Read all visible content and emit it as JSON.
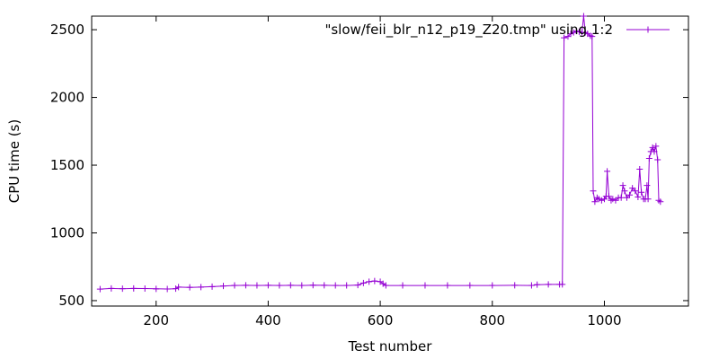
{
  "chart_data": {
    "type": "line",
    "title": "",
    "xlabel": "Test number",
    "ylabel": "CPU time (s)",
    "xlim": [
      85,
      1150
    ],
    "ylim": [
      460,
      2600
    ],
    "x_ticks": [
      200,
      400,
      600,
      800,
      1000
    ],
    "y_ticks": [
      500,
      1000,
      1500,
      2000,
      2500
    ],
    "grid": false,
    "legend_position": "top-right",
    "series": [
      {
        "name": "\"slow/feii_blr_n12_p19_Z20.tmp\" using 1:2",
        "color": "#9400d3",
        "marker": "plus",
        "points": [
          [
            100,
            585
          ],
          [
            120,
            590
          ],
          [
            140,
            588
          ],
          [
            160,
            590
          ],
          [
            180,
            589
          ],
          [
            200,
            587
          ],
          [
            220,
            586
          ],
          [
            235,
            588
          ],
          [
            240,
            600
          ],
          [
            260,
            598
          ],
          [
            280,
            600
          ],
          [
            300,
            603
          ],
          [
            320,
            608
          ],
          [
            340,
            612
          ],
          [
            360,
            613
          ],
          [
            380,
            612
          ],
          [
            400,
            613
          ],
          [
            420,
            612
          ],
          [
            440,
            613
          ],
          [
            460,
            612
          ],
          [
            480,
            614
          ],
          [
            500,
            613
          ],
          [
            520,
            612
          ],
          [
            540,
            612
          ],
          [
            560,
            615
          ],
          [
            570,
            630
          ],
          [
            580,
            640
          ],
          [
            590,
            645
          ],
          [
            600,
            640
          ],
          [
            605,
            625
          ],
          [
            610,
            612
          ],
          [
            640,
            612
          ],
          [
            680,
            612
          ],
          [
            720,
            612
          ],
          [
            760,
            612
          ],
          [
            800,
            612
          ],
          [
            840,
            613
          ],
          [
            870,
            612
          ],
          [
            880,
            618
          ],
          [
            900,
            620
          ],
          [
            920,
            620
          ],
          [
            925,
            620
          ],
          [
            928,
            2440
          ],
          [
            935,
            2450
          ],
          [
            940,
            2470
          ],
          [
            945,
            2480
          ],
          [
            950,
            2490
          ],
          [
            955,
            2485
          ],
          [
            960,
            2480
          ],
          [
            963,
            2600
          ],
          [
            966,
            2480
          ],
          [
            970,
            2470
          ],
          [
            975,
            2455
          ],
          [
            978,
            2450
          ],
          [
            980,
            1310
          ],
          [
            983,
            1230
          ],
          [
            987,
            1260
          ],
          [
            990,
            1250
          ],
          [
            995,
            1240
          ],
          [
            1000,
            1250
          ],
          [
            1003,
            1270
          ],
          [
            1005,
            1455
          ],
          [
            1008,
            1270
          ],
          [
            1012,
            1240
          ],
          [
            1015,
            1250
          ],
          [
            1020,
            1240
          ],
          [
            1025,
            1260
          ],
          [
            1030,
            1260
          ],
          [
            1033,
            1350
          ],
          [
            1036,
            1310
          ],
          [
            1040,
            1260
          ],
          [
            1045,
            1280
          ],
          [
            1050,
            1330
          ],
          [
            1055,
            1310
          ],
          [
            1060,
            1265
          ],
          [
            1063,
            1470
          ],
          [
            1066,
            1300
          ],
          [
            1070,
            1250
          ],
          [
            1073,
            1250
          ],
          [
            1076,
            1350
          ],
          [
            1078,
            1250
          ],
          [
            1080,
            1550
          ],
          [
            1083,
            1600
          ],
          [
            1086,
            1630
          ],
          [
            1089,
            1600
          ],
          [
            1092,
            1640
          ],
          [
            1095,
            1540
          ],
          [
            1097,
            1240
          ],
          [
            1100,
            1230
          ]
        ]
      }
    ]
  }
}
